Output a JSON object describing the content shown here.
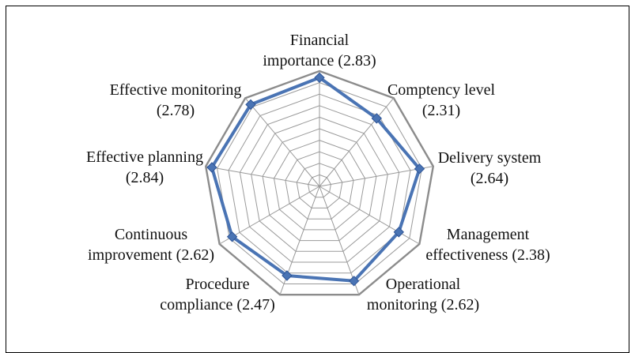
{
  "chart_data": {
    "type": "radar",
    "title": "",
    "axes": [
      {
        "name": "Financial",
        "name_line2": "importance (2.83)",
        "value": 2.83
      },
      {
        "name": "Comptency level",
        "name_line2": "(2.31)",
        "value": 2.31
      },
      {
        "name": "Delivery system",
        "name_line2": "(2.64)",
        "value": 2.64
      },
      {
        "name": "Management",
        "name_line2": "effectiveness (2.38)",
        "value": 2.38
      },
      {
        "name": "Operational",
        "name_line2": "monitoring (2.62)",
        "value": 2.62
      },
      {
        "name": "Procedure",
        "name_line2": "compliance (2.47)",
        "value": 2.47
      },
      {
        "name": "Continuous",
        "name_line2": "improvement (2.62)",
        "value": 2.62
      },
      {
        "name": "Effective planning",
        "name_line2": "(2.84)",
        "value": 2.84
      },
      {
        "name": "Effective monitoring",
        "name_line2": "(2.78)",
        "value": 2.78
      }
    ],
    "rlim": [
      0,
      3
    ],
    "grid": true,
    "series_color": "#4a74b4",
    "grid_color": "#999999"
  }
}
